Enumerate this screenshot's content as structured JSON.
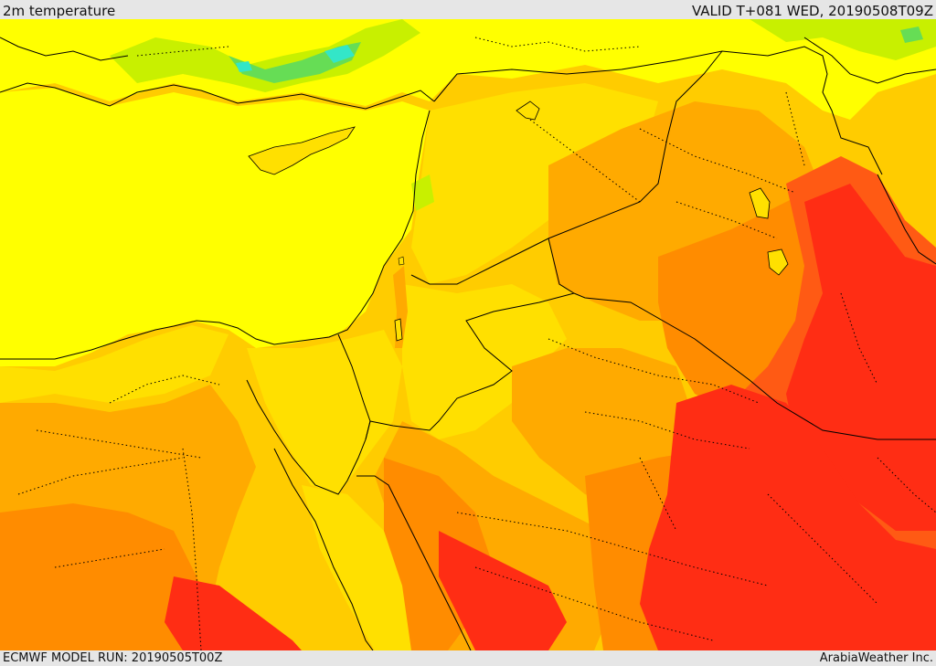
{
  "header": {
    "title": "2m temperature",
    "valid": "VALID T+081 WED, 20190508T09Z"
  },
  "footer": {
    "model_run": "ECMWF MODEL RUN: 20190505T00Z",
    "credit": "ArabiaWeather Inc."
  },
  "colors": {
    "cool_green": "#66dd55",
    "cyan_spot": "#33e6c8",
    "light_green": "#c8f000",
    "yellow": "#ffff00",
    "yellow_gold": "#ffe000",
    "gold": "#ffcc00",
    "orange_light": "#ffaa00",
    "orange": "#ff8c00",
    "orange_red": "#ff5a14",
    "red": "#ff2d14"
  }
}
